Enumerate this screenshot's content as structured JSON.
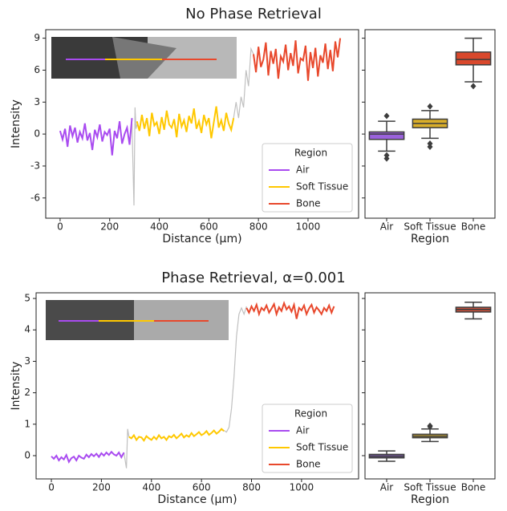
{
  "chart_data": [
    {
      "type": "line",
      "title": "No Phase Retrieval",
      "xlabel": "Distance (μm)",
      "ylabel": "Intensity",
      "xlim": [
        -58,
        1204
      ],
      "ylim": [
        -7.9,
        9.8
      ],
      "xticks": [
        0,
        200,
        400,
        600,
        800,
        1000
      ],
      "yticks": [
        -6,
        -3,
        0,
        3,
        6,
        9
      ],
      "legend_title": "Region",
      "legend": "lower right",
      "series": [
        {
          "color": "#c0c0c0",
          "x": [
            290,
            298,
            302,
            306,
            312,
            500,
            700,
            710,
            720,
            730,
            740,
            750,
            760,
            770,
            780
          ],
          "values": [
            1.0,
            -6.7,
            2.5,
            0.5,
            1.0,
            null,
            1.5,
            3.0,
            1.5,
            3.5,
            2.5,
            6.0,
            4.5,
            8.0,
            7.5
          ]
        },
        {
          "name": "Air",
          "color": "#a94bf0",
          "x": [
            0,
            10,
            20,
            30,
            40,
            50,
            60,
            70,
            80,
            90,
            100,
            110,
            120,
            130,
            140,
            150,
            160,
            170,
            180,
            190,
            200,
            210,
            220,
            230,
            240,
            250,
            260,
            270,
            280,
            290
          ],
          "values": [
            0.3,
            -0.5,
            0.5,
            -1.2,
            0.8,
            -0.2,
            0.6,
            -0.8,
            0.2,
            -0.4,
            1.0,
            -0.6,
            0.1,
            -1.5,
            0.4,
            -0.3,
            0.9,
            -0.7,
            0.2,
            -0.1,
            0.5,
            -2.0,
            0.3,
            -0.4,
            1.2,
            -0.9,
            0.0,
            0.6,
            -1.0,
            1.5
          ]
        },
        {
          "name": "Soft Tissue",
          "color": "#ffc800",
          "x": [
            310,
            320,
            330,
            340,
            350,
            360,
            370,
            380,
            390,
            400,
            410,
            420,
            430,
            440,
            450,
            460,
            470,
            480,
            490,
            500,
            510,
            520,
            530,
            540,
            550,
            560,
            570,
            580,
            590,
            600,
            610,
            620,
            630,
            640,
            650,
            660,
            670,
            680,
            690,
            700
          ],
          "values": [
            1.2,
            0.3,
            1.8,
            0.5,
            1.5,
            -0.2,
            2.0,
            0.8,
            1.1,
            0.0,
            1.6,
            0.4,
            2.2,
            0.9,
            0.6,
            1.4,
            -0.3,
            1.9,
            0.7,
            1.3,
            0.2,
            1.7,
            1.0,
            2.4,
            0.5,
            1.2,
            0.1,
            1.8,
            0.9,
            1.5,
            -0.4,
            1.1,
            2.6,
            0.6,
            1.3,
            0.3,
            2.0,
            1.0,
            0.4,
            1.5
          ]
        },
        {
          "name": "Bone",
          "color": "#e8482c",
          "x": [
            780,
            790,
            800,
            810,
            820,
            830,
            840,
            850,
            860,
            870,
            880,
            890,
            900,
            910,
            920,
            930,
            940,
            950,
            960,
            970,
            980,
            990,
            1000,
            1010,
            1020,
            1030,
            1040,
            1050,
            1060,
            1070,
            1080,
            1090,
            1100,
            1110,
            1120,
            1130
          ],
          "values": [
            7.5,
            5.8,
            8.2,
            6.3,
            7.0,
            8.6,
            5.5,
            7.8,
            6.6,
            8.0,
            5.2,
            7.3,
            6.8,
            8.4,
            6.0,
            7.6,
            6.4,
            8.8,
            5.7,
            7.1,
            6.9,
            8.3,
            5.0,
            7.7,
            6.2,
            8.1,
            5.4,
            7.4,
            6.7,
            8.5,
            6.1,
            7.9,
            5.9,
            8.7,
            7.2,
            9.0
          ]
        }
      ]
    },
    {
      "type": "box",
      "xlabel": "Region",
      "categories": [
        "Air",
        "Soft Tissue",
        "Bone"
      ],
      "colors": [
        "#9a62dc",
        "#d9ae2a",
        "#d9482c"
      ],
      "ylim": [
        -7.9,
        9.8
      ],
      "yticks": [
        -6,
        -3,
        0,
        3,
        6,
        9
      ],
      "boxes": [
        {
          "whislo": -1.6,
          "q1": -0.5,
          "med": 0.0,
          "q3": 0.2,
          "whishi": 1.2,
          "fliers": [
            1.7,
            -2.0,
            -2.3
          ]
        },
        {
          "whislo": -0.4,
          "q1": 0.6,
          "med": 1.0,
          "q3": 1.4,
          "whishi": 2.2,
          "fliers": [
            2.6,
            -0.9,
            -1.2
          ]
        },
        {
          "whislo": 4.9,
          "q1": 6.5,
          "med": 7.0,
          "q3": 7.7,
          "whishi": 9.0,
          "fliers": [
            4.5
          ]
        }
      ]
    },
    {
      "type": "line",
      "title": "Phase Retrieval, α=0.001",
      "xlabel": "Distance (μm)",
      "ylabel": "Intensity",
      "xlim": [
        -61,
        1228
      ],
      "ylim": [
        -0.74,
        5.18
      ],
      "xticks": [
        0,
        200,
        400,
        600,
        800,
        1000
      ],
      "yticks": [
        0,
        1,
        2,
        3,
        4,
        5
      ],
      "legend_title": "Region",
      "legend": "lower right",
      "series": [
        {
          "color": "#c0c0c0",
          "x": [
            290,
            300,
            305,
            310,
            500,
            690,
            700,
            710,
            720,
            730,
            740,
            750,
            760,
            770,
            780
          ],
          "values": [
            0.1,
            -0.4,
            0.85,
            0.6,
            null,
            0.8,
            0.75,
            0.9,
            1.5,
            2.5,
            3.8,
            4.5,
            4.7,
            4.5,
            4.75
          ]
        },
        {
          "name": "Air",
          "color": "#a94bf0",
          "x": [
            0,
            10,
            20,
            30,
            40,
            50,
            60,
            70,
            80,
            90,
            100,
            110,
            120,
            130,
            140,
            150,
            160,
            170,
            180,
            190,
            200,
            210,
            220,
            230,
            240,
            250,
            260,
            270,
            280,
            290
          ],
          "values": [
            -0.02,
            -0.1,
            0.0,
            -0.15,
            -0.05,
            -0.12,
            0.02,
            -0.2,
            -0.08,
            -0.03,
            -0.15,
            0.0,
            -0.06,
            -0.1,
            0.03,
            -0.05,
            0.05,
            -0.02,
            0.06,
            -0.04,
            0.08,
            0.0,
            0.1,
            0.02,
            0.12,
            0.04,
            0.0,
            0.1,
            -0.05,
            0.1
          ]
        },
        {
          "name": "Soft Tissue",
          "color": "#ffc800",
          "x": [
            310,
            320,
            330,
            340,
            350,
            360,
            370,
            380,
            390,
            400,
            410,
            420,
            430,
            440,
            450,
            460,
            470,
            480,
            490,
            500,
            510,
            520,
            530,
            540,
            550,
            560,
            570,
            580,
            590,
            600,
            610,
            620,
            630,
            640,
            650,
            660,
            670,
            680,
            690
          ],
          "values": [
            0.6,
            0.55,
            0.65,
            0.5,
            0.6,
            0.58,
            0.48,
            0.62,
            0.55,
            0.5,
            0.6,
            0.52,
            0.65,
            0.55,
            0.6,
            0.5,
            0.62,
            0.58,
            0.66,
            0.55,
            0.62,
            0.7,
            0.58,
            0.65,
            0.6,
            0.72,
            0.62,
            0.68,
            0.75,
            0.65,
            0.7,
            0.78,
            0.66,
            0.72,
            0.8,
            0.7,
            0.76,
            0.85,
            0.78
          ]
        },
        {
          "name": "Bone",
          "color": "#e8482c",
          "x": [
            780,
            790,
            800,
            810,
            820,
            830,
            840,
            850,
            860,
            870,
            880,
            890,
            900,
            910,
            920,
            930,
            940,
            950,
            960,
            970,
            980,
            990,
            1000,
            1010,
            1020,
            1030,
            1040,
            1050,
            1060,
            1070,
            1080,
            1090,
            1100,
            1110,
            1120,
            1130
          ],
          "values": [
            4.7,
            4.55,
            4.75,
            4.6,
            4.8,
            4.5,
            4.7,
            4.62,
            4.78,
            4.55,
            4.68,
            4.82,
            4.5,
            4.72,
            4.6,
            4.85,
            4.65,
            4.75,
            4.58,
            4.8,
            4.35,
            4.7,
            4.62,
            4.78,
            4.5,
            4.68,
            4.8,
            4.55,
            4.72,
            4.62,
            4.5,
            4.7,
            4.6,
            4.78,
            4.55,
            4.75
          ]
        }
      ]
    },
    {
      "type": "box",
      "xlabel": "Region",
      "categories": [
        "Air",
        "Soft Tissue",
        "Bone"
      ],
      "colors": [
        "#7a5aa8",
        "#c9a532",
        "#c8503a"
      ],
      "ylim": [
        -0.74,
        5.18
      ],
      "yticks": [
        0,
        1,
        2,
        3,
        4,
        5
      ],
      "boxes": [
        {
          "whislo": -0.18,
          "q1": -0.07,
          "med": -0.02,
          "q3": 0.04,
          "whishi": 0.15,
          "fliers": []
        },
        {
          "whislo": 0.45,
          "q1": 0.57,
          "med": 0.62,
          "q3": 0.68,
          "whishi": 0.85,
          "fliers": [
            0.92,
            0.95
          ]
        },
        {
          "whislo": 4.35,
          "q1": 4.57,
          "med": 4.65,
          "q3": 4.72,
          "whishi": 4.88,
          "fliers": []
        }
      ]
    }
  ]
}
